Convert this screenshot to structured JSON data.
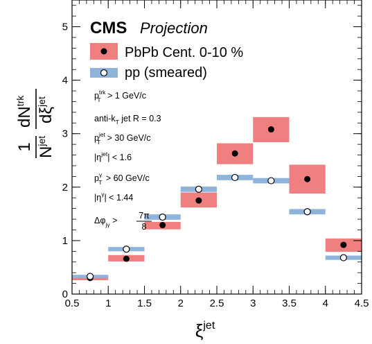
{
  "chart_data": {
    "type": "scatter",
    "experiment": "CMS",
    "status": "Projection",
    "xlabel_main": "ξ",
    "xlabel_sup": "jet",
    "ylabel": {
      "one": "1",
      "den": "N",
      "den_sup": "jet",
      "num": "dN",
      "num_sup": "trk",
      "dxi": "dξ",
      "dxi_sup": "jet"
    },
    "xlim": [
      0.5,
      4.5
    ],
    "ylim": [
      0,
      5.5
    ],
    "x_ticks": [
      {
        "value": 0.5,
        "label": "0.5"
      },
      {
        "value": 1,
        "label": "1"
      },
      {
        "value": 1.5,
        "label": "1.5"
      },
      {
        "value": 2,
        "label": "2"
      },
      {
        "value": 2.5,
        "label": "2.5"
      },
      {
        "value": 3,
        "label": "3"
      },
      {
        "value": 3.5,
        "label": "3.5"
      },
      {
        "value": 4,
        "label": "4"
      },
      {
        "value": 4.5,
        "label": "4.5"
      }
    ],
    "y_ticks": [
      {
        "value": 0,
        "label": "0"
      },
      {
        "value": 1,
        "label": "1"
      },
      {
        "value": 2,
        "label": "2"
      },
      {
        "value": 3,
        "label": "3"
      },
      {
        "value": 4,
        "label": "4"
      },
      {
        "value": 5,
        "label": "5"
      }
    ],
    "colors": {
      "pbpb_box": "#f08080",
      "pp_band": "#8fb4db",
      "marker": "#000000"
    },
    "series": [
      {
        "name": "PbPb Cent. 0-10 %",
        "marker": "filled-circle",
        "points": [
          {
            "x": 0.75,
            "y": 0.3,
            "x_lo": 0.5,
            "x_hi": 1.0,
            "y_lo": 0.26,
            "y_hi": 0.34
          },
          {
            "x": 1.25,
            "y": 0.66,
            "x_lo": 1.0,
            "x_hi": 1.5,
            "y_lo": 0.61,
            "y_hi": 0.73
          },
          {
            "x": 1.75,
            "y": 1.29,
            "x_lo": 1.5,
            "x_hi": 2.0,
            "y_lo": 1.21,
            "y_hi": 1.35
          },
          {
            "x": 2.25,
            "y": 1.75,
            "x_lo": 2.0,
            "x_hi": 2.5,
            "y_lo": 1.62,
            "y_hi": 1.9
          },
          {
            "x": 2.75,
            "y": 2.63,
            "x_lo": 2.5,
            "x_hi": 3.0,
            "y_lo": 2.43,
            "y_hi": 2.82
          },
          {
            "x": 3.25,
            "y": 3.08,
            "x_lo": 3.0,
            "x_hi": 3.5,
            "y_lo": 2.84,
            "y_hi": 3.31
          },
          {
            "x": 3.75,
            "y": 2.15,
            "x_lo": 3.5,
            "x_hi": 4.0,
            "y_lo": 1.88,
            "y_hi": 2.42
          },
          {
            "x": 4.25,
            "y": 0.92,
            "x_lo": 4.0,
            "x_hi": 4.5,
            "y_lo": 0.79,
            "y_hi": 1.04
          }
        ]
      },
      {
        "name": "pp (smeared)",
        "marker": "open-circle",
        "points": [
          {
            "x": 0.75,
            "y": 0.33,
            "x_lo": 0.5,
            "x_hi": 1.0,
            "y_lo": 0.3,
            "y_hi": 0.36
          },
          {
            "x": 1.25,
            "y": 0.84,
            "x_lo": 1.0,
            "x_hi": 1.5,
            "y_lo": 0.8,
            "y_hi": 0.88
          },
          {
            "x": 1.75,
            "y": 1.44,
            "x_lo": 1.5,
            "x_hi": 2.0,
            "y_lo": 1.39,
            "y_hi": 1.49
          },
          {
            "x": 2.25,
            "y": 1.96,
            "x_lo": 2.0,
            "x_hi": 2.5,
            "y_lo": 1.91,
            "y_hi": 2.01
          },
          {
            "x": 2.75,
            "y": 2.18,
            "x_lo": 2.5,
            "x_hi": 3.0,
            "y_lo": 2.13,
            "y_hi": 2.23
          },
          {
            "x": 3.25,
            "y": 2.12,
            "x_lo": 3.0,
            "x_hi": 3.5,
            "y_lo": 2.07,
            "y_hi": 2.17
          },
          {
            "x": 3.75,
            "y": 1.54,
            "x_lo": 3.5,
            "x_hi": 4.0,
            "y_lo": 1.49,
            "y_hi": 1.59
          },
          {
            "x": 4.25,
            "y": 0.68,
            "x_lo": 4.0,
            "x_hi": 4.5,
            "y_lo": 0.64,
            "y_hi": 0.72
          }
        ]
      }
    ],
    "legend": {
      "position": "top-left",
      "entries": [
        "PbPb Cent. 0-10 %",
        "pp (smeared)"
      ]
    },
    "annotations": {
      "trk_pt": {
        "sym": "p",
        "sup": "trk",
        "sub": "T",
        "rest": " > 1 GeV/c"
      },
      "jet_algo": {
        "main": "anti-k",
        "sub": "T",
        "rest": " jet R = 0.3"
      },
      "jet_pt": {
        "sym": "p",
        "sup": "jet",
        "sub": "T",
        "rest": " > 30 GeV/c"
      },
      "jet_eta": {
        "main": "|η",
        "sup": "jet",
        "rest": "| < 1.6"
      },
      "gamma_pt": {
        "sym": "p",
        "sup": "γ",
        "sub": "T",
        "rest": " > 60 GeV/c"
      },
      "gamma_eta": {
        "main": "|η",
        "sup": "γ",
        "rest": "| < 1.44"
      },
      "dphi": {
        "main": "Δφ",
        "sub": "jγ",
        "rest": " >",
        "frac_num": "7π",
        "frac_den": "8"
      }
    }
  }
}
